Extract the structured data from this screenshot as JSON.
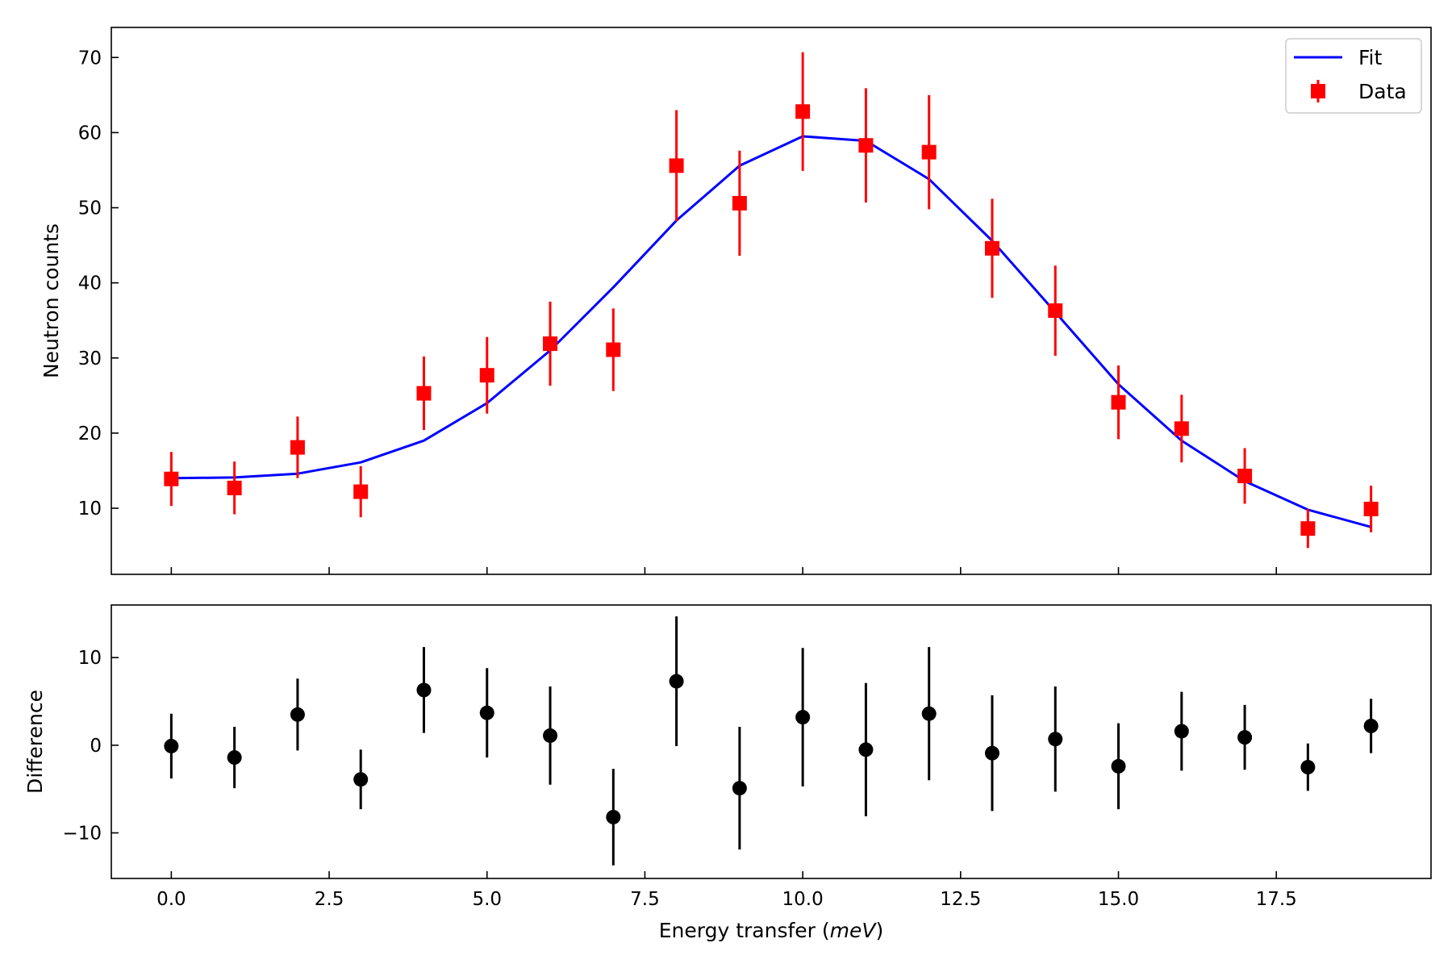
{
  "chart_data": [
    {
      "type": "line",
      "panel": "top",
      "ylabel": "Neutron counts",
      "xlim": [
        -0.95,
        19.95
      ],
      "ylim": [
        1.2,
        74.0
      ],
      "x_ticks": [
        0,
        2.5,
        5,
        7.5,
        10,
        12.5,
        15,
        17.5
      ],
      "y_ticks": [
        10,
        20,
        30,
        40,
        50,
        60,
        70
      ],
      "y_tick_labels": [
        "10",
        "20",
        "30",
        "40",
        "50",
        "60",
        "70"
      ],
      "legend": {
        "position": "top-right",
        "fit_label": "Fit",
        "data_label": "Data"
      },
      "series": [
        {
          "name": "Fit",
          "kind": "line",
          "color": "#0000ff",
          "x": [
            0,
            1,
            2,
            3,
            4,
            5,
            6,
            7,
            8,
            9,
            10,
            11,
            12,
            13,
            14,
            15,
            16,
            17,
            18,
            19
          ],
          "y": [
            14.0,
            14.1,
            14.6,
            16.1,
            19.0,
            24.0,
            31.0,
            39.4,
            48.3,
            55.6,
            59.5,
            58.9,
            53.8,
            45.6,
            36.1,
            26.5,
            19.0,
            13.6,
            9.8,
            7.5
          ]
        },
        {
          "name": "Data",
          "kind": "errorbar",
          "marker": "square",
          "color": "#ff0000",
          "x": [
            0,
            1,
            2,
            3,
            4,
            5,
            6,
            7,
            8,
            9,
            10,
            11,
            12,
            13,
            14,
            15,
            16,
            17,
            18,
            19
          ],
          "y": [
            13.9,
            12.7,
            18.1,
            12.2,
            25.3,
            27.7,
            31.9,
            31.1,
            55.6,
            50.6,
            62.8,
            58.3,
            57.4,
            44.6,
            36.3,
            24.1,
            20.6,
            14.3,
            7.3,
            9.9
          ],
          "yerr": [
            3.6,
            3.5,
            4.1,
            3.4,
            4.9,
            5.1,
            5.6,
            5.5,
            7.4,
            7.0,
            7.9,
            7.6,
            7.6,
            6.6,
            6.0,
            4.9,
            4.5,
            3.7,
            2.6,
            3.1
          ]
        }
      ]
    },
    {
      "type": "scatter",
      "panel": "bottom",
      "xlabel_prefix": "Energy transfer (",
      "xlabel_unit": "meV",
      "xlabel_suffix": ")",
      "ylabel": "Difference",
      "xlim": [
        -0.95,
        19.95
      ],
      "ylim": [
        -15.2,
        16.0
      ],
      "x_ticks": [
        0,
        2.5,
        5,
        7.5,
        10,
        12.5,
        15,
        17.5
      ],
      "x_tick_labels": [
        "0.0",
        "2.5",
        "5.0",
        "7.5",
        "10.0",
        "12.5",
        "15.0",
        "17.5"
      ],
      "y_ticks": [
        -10,
        0,
        10
      ],
      "y_tick_labels": [
        "−10",
        "0",
        "10"
      ],
      "series": [
        {
          "kind": "errorbar",
          "marker": "circle",
          "color": "#000000",
          "x": [
            0,
            1,
            2,
            3,
            4,
            5,
            6,
            7,
            8,
            9,
            10,
            11,
            12,
            13,
            14,
            15,
            16,
            17,
            18,
            19
          ],
          "y": [
            -0.1,
            -1.4,
            3.5,
            -3.9,
            6.3,
            3.7,
            1.1,
            -8.2,
            7.3,
            -4.9,
            3.2,
            -0.5,
            3.6,
            -0.9,
            0.7,
            -2.4,
            1.6,
            0.9,
            -2.5,
            2.2
          ],
          "yerr": [
            3.7,
            3.5,
            4.1,
            3.4,
            4.9,
            5.1,
            5.6,
            5.5,
            7.4,
            7.0,
            7.9,
            7.6,
            7.6,
            6.6,
            6.0,
            4.9,
            4.5,
            3.7,
            2.7,
            3.1
          ]
        }
      ]
    }
  ]
}
